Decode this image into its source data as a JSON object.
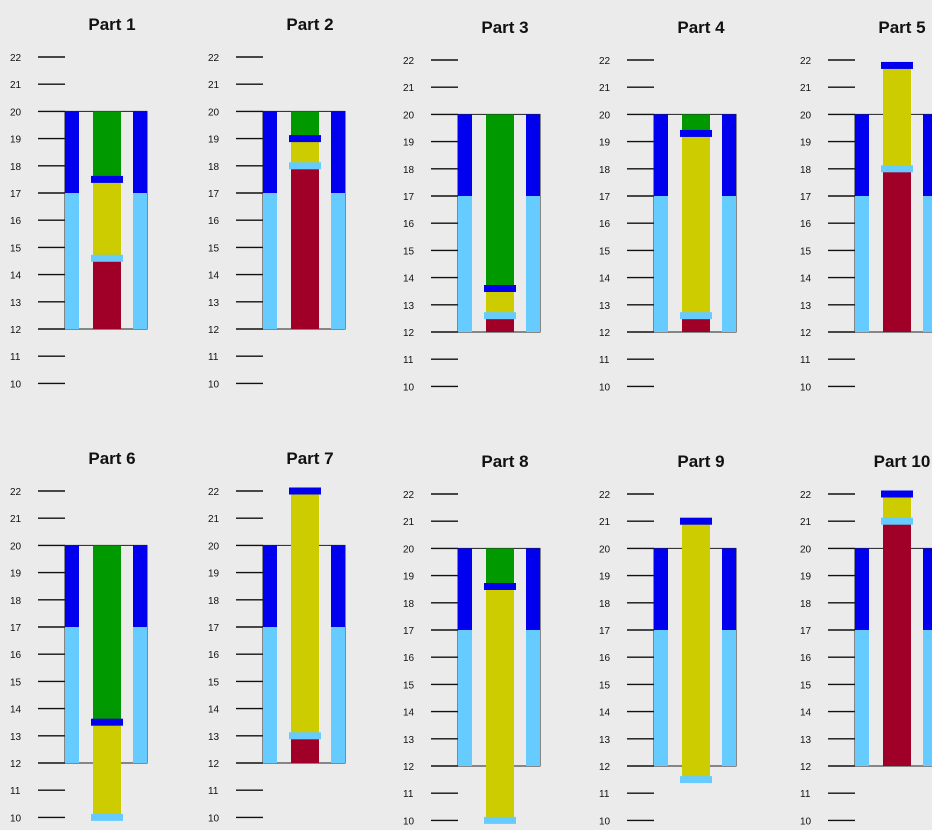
{
  "colors": {
    "background": "#ebebeb",
    "frame_upper": "#0000ee",
    "frame_lower": "#66ccff",
    "segment_green": "#009900",
    "segment_yellow": "#cccc00",
    "segment_red": "#a00028",
    "marker_dark": "#0000ee",
    "marker_light": "#66ccff",
    "axis": "#111111"
  },
  "chart_data": [
    {
      "type": "bar",
      "title": "Part 1",
      "ylim": [
        10,
        22
      ],
      "yticks": [
        "10",
        "11",
        "12",
        "13",
        "14",
        "15",
        "16",
        "17",
        "18",
        "19",
        "20",
        "21",
        "22"
      ],
      "frame": {
        "bottom": 12,
        "split": 17,
        "top": 20
      },
      "segments": [
        {
          "color": "red",
          "from": 12,
          "to": 14.6
        },
        {
          "color": "yellow",
          "from": 14.6,
          "to": 17.5
        },
        {
          "color": "green",
          "from": 17.5,
          "to": 20
        }
      ],
      "markers": [
        {
          "color": "light",
          "value": 14.6
        },
        {
          "color": "dark",
          "value": 17.5
        }
      ]
    },
    {
      "type": "bar",
      "title": "Part 2",
      "ylim": [
        10,
        22
      ],
      "yticks": [
        "10",
        "11",
        "12",
        "13",
        "14",
        "15",
        "16",
        "17",
        "18",
        "19",
        "20",
        "21",
        "22"
      ],
      "frame": {
        "bottom": 12,
        "split": 17,
        "top": 20
      },
      "segments": [
        {
          "color": "red",
          "from": 12,
          "to": 18
        },
        {
          "color": "yellow",
          "from": 18,
          "to": 19
        },
        {
          "color": "green",
          "from": 19,
          "to": 20
        }
      ],
      "markers": [
        {
          "color": "light",
          "value": 18
        },
        {
          "color": "dark",
          "value": 19
        }
      ]
    },
    {
      "type": "bar",
      "title": "Part 3",
      "ylim": [
        10,
        22
      ],
      "yticks": [
        "10",
        "11",
        "12",
        "13",
        "14",
        "15",
        "16",
        "17",
        "18",
        "19",
        "20",
        "21",
        "22"
      ],
      "frame": {
        "bottom": 12,
        "split": 17,
        "top": 20
      },
      "segments": [
        {
          "color": "red",
          "from": 12,
          "to": 12.6
        },
        {
          "color": "yellow",
          "from": 12.6,
          "to": 13.6
        },
        {
          "color": "green",
          "from": 13.6,
          "to": 20
        }
      ],
      "markers": [
        {
          "color": "light",
          "value": 12.6
        },
        {
          "color": "dark",
          "value": 13.6
        }
      ]
    },
    {
      "type": "bar",
      "title": "Part 4",
      "ylim": [
        10,
        22
      ],
      "yticks": [
        "10",
        "11",
        "12",
        "13",
        "14",
        "15",
        "16",
        "17",
        "18",
        "19",
        "20",
        "21",
        "22"
      ],
      "frame": {
        "bottom": 12,
        "split": 17,
        "top": 20
      },
      "segments": [
        {
          "color": "red",
          "from": 12,
          "to": 12.6
        },
        {
          "color": "yellow",
          "from": 12.6,
          "to": 19.3
        },
        {
          "color": "green",
          "from": 19.3,
          "to": 20
        }
      ],
      "markers": [
        {
          "color": "light",
          "value": 12.6
        },
        {
          "color": "dark",
          "value": 19.3
        }
      ]
    },
    {
      "type": "bar",
      "title": "Part 5",
      "ylim": [
        10,
        22
      ],
      "yticks": [
        "10",
        "11",
        "12",
        "13",
        "14",
        "15",
        "16",
        "17",
        "18",
        "19",
        "20",
        "21",
        "22"
      ],
      "frame": {
        "bottom": 12,
        "split": 17,
        "top": 20
      },
      "segments": [
        {
          "color": "red",
          "from": 12,
          "to": 18
        },
        {
          "color": "yellow",
          "from": 18,
          "to": 21.8
        }
      ],
      "markers": [
        {
          "color": "light",
          "value": 18
        },
        {
          "color": "dark",
          "value": 21.8
        }
      ]
    },
    {
      "type": "bar",
      "title": "Part 6",
      "ylim": [
        10,
        22
      ],
      "yticks": [
        "10",
        "11",
        "12",
        "13",
        "14",
        "15",
        "16",
        "17",
        "18",
        "19",
        "20",
        "21",
        "22"
      ],
      "frame": {
        "bottom": 12,
        "split": 17,
        "top": 20
      },
      "segments": [
        {
          "color": "yellow",
          "from": 10,
          "to": 13.5
        },
        {
          "color": "green",
          "from": 13.5,
          "to": 20
        }
      ],
      "markers": [
        {
          "color": "light",
          "value": 10
        },
        {
          "color": "dark",
          "value": 13.5
        }
      ]
    },
    {
      "type": "bar",
      "title": "Part 7",
      "ylim": [
        10,
        22
      ],
      "yticks": [
        "10",
        "11",
        "12",
        "13",
        "14",
        "15",
        "16",
        "17",
        "18",
        "19",
        "20",
        "21",
        "22"
      ],
      "frame": {
        "bottom": 12,
        "split": 17,
        "top": 20
      },
      "segments": [
        {
          "color": "red",
          "from": 12,
          "to": 13
        },
        {
          "color": "yellow",
          "from": 13,
          "to": 22
        }
      ],
      "markers": [
        {
          "color": "light",
          "value": 13
        },
        {
          "color": "dark",
          "value": 22
        }
      ]
    },
    {
      "type": "bar",
      "title": "Part 8",
      "ylim": [
        10,
        22
      ],
      "yticks": [
        "10",
        "11",
        "12",
        "13",
        "14",
        "15",
        "16",
        "17",
        "18",
        "19",
        "20",
        "21",
        "22"
      ],
      "frame": {
        "bottom": 12,
        "split": 17,
        "top": 20
      },
      "segments": [
        {
          "color": "yellow",
          "from": 10,
          "to": 18.6
        },
        {
          "color": "green",
          "from": 18.6,
          "to": 20
        }
      ],
      "markers": [
        {
          "color": "light",
          "value": 10
        },
        {
          "color": "dark",
          "value": 18.6
        }
      ]
    },
    {
      "type": "bar",
      "title": "Part 9",
      "ylim": [
        10,
        22
      ],
      "yticks": [
        "10",
        "11",
        "12",
        "13",
        "14",
        "15",
        "16",
        "17",
        "18",
        "19",
        "20",
        "21",
        "22"
      ],
      "frame": {
        "bottom": 12,
        "split": 17,
        "top": 20
      },
      "segments": [
        {
          "color": "yellow",
          "from": 11.5,
          "to": 21
        }
      ],
      "markers": [
        {
          "color": "light",
          "value": 11.5
        },
        {
          "color": "dark",
          "value": 21
        }
      ]
    },
    {
      "type": "bar",
      "title": "Part 10",
      "ylim": [
        10,
        22
      ],
      "yticks": [
        "10",
        "11",
        "12",
        "13",
        "14",
        "15",
        "16",
        "17",
        "18",
        "19",
        "20",
        "21",
        "22"
      ],
      "frame": {
        "bottom": 12,
        "split": 17,
        "top": 20
      },
      "segments": [
        {
          "color": "red",
          "from": 12,
          "to": 21
        },
        {
          "color": "yellow",
          "from": 21,
          "to": 22
        }
      ],
      "markers": [
        {
          "color": "light",
          "value": 21
        },
        {
          "color": "dark",
          "value": 22
        }
      ]
    }
  ]
}
